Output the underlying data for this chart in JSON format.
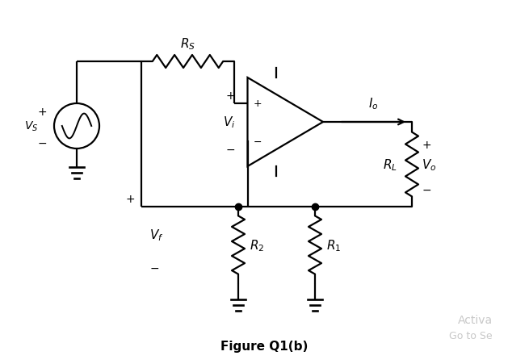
{
  "title": "Figure Q1(b)",
  "bg_color": "#ffffff",
  "line_color": "#000000",
  "fig_width": 6.55,
  "fig_height": 4.52,
  "dpi": 100,
  "watermark1": "Activa",
  "watermark2": "Go to Se",
  "watermark_color": "#c8c8c8"
}
